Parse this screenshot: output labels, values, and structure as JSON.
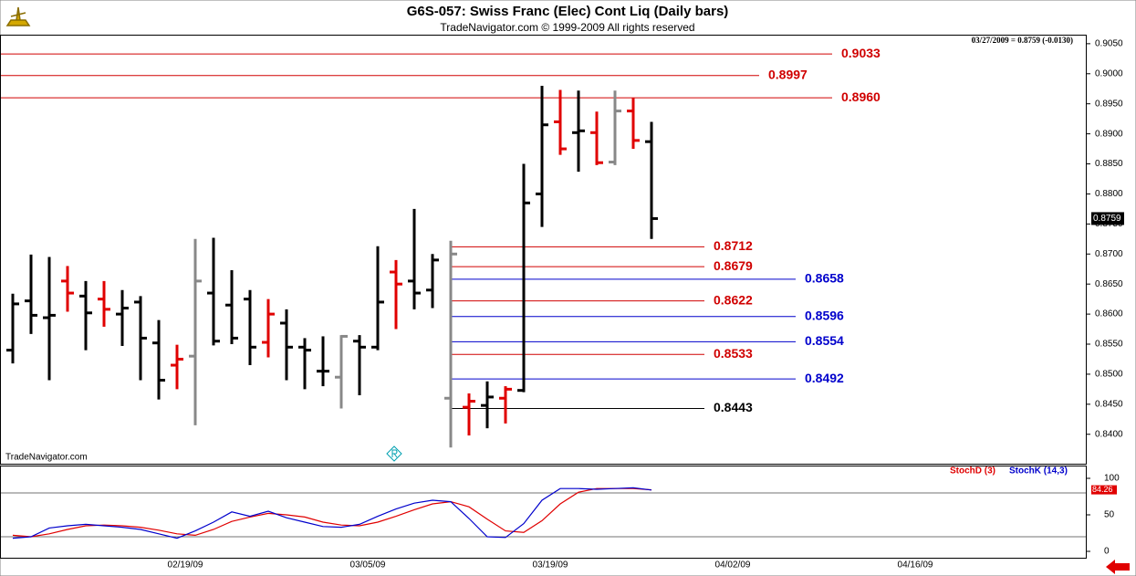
{
  "chart_data": [
    {
      "type": "ohlc",
      "title": "G6S-057:  Swiss Franc (Elec) Cont Liq  (Daily bars)",
      "subtitle": "TradeNavigator.com © 1999-2009 All rights reserved",
      "annotation": "03/27/2009 = 0.8759 (-0.0130)",
      "watermark": "TradeNavigator.com",
      "last_value_label": "0.8759",
      "categories": [
        null,
        null,
        null,
        null,
        null,
        null,
        null,
        null,
        null,
        "02/19/09",
        null,
        null,
        null,
        null,
        null,
        null,
        null,
        null,
        null,
        "03/05/09",
        null,
        null,
        null,
        null,
        null,
        null,
        null,
        null,
        null,
        "03/19/09",
        null,
        null,
        null,
        null,
        null,
        null,
        null,
        null,
        null,
        "04/02/09",
        null,
        null,
        null,
        null,
        null,
        null,
        null,
        null,
        null,
        "04/16/09",
        null,
        null,
        null,
        null,
        null,
        null,
        null,
        null,
        null
      ],
      "open": [
        0.854,
        0.8622,
        0.8594,
        0.8655,
        0.863,
        0.8625,
        0.86,
        0.862,
        0.8552,
        0.8515,
        0.853,
        0.8635,
        0.8615,
        0.8625,
        0.8553,
        0.8585,
        0.8545,
        0.8505,
        0.8495,
        0.8555,
        0.8545,
        0.867,
        0.8655,
        0.864,
        0.846,
        0.8445,
        0.8448,
        0.846,
        0.8473,
        0.88,
        0.892,
        0.8902,
        0.8902,
        0.8853,
        0.8938,
        0.8887,
        null,
        null,
        null,
        null,
        null,
        null,
        null,
        null,
        null,
        null,
        null,
        null,
        null,
        null,
        null,
        null,
        null,
        null,
        null,
        null,
        null,
        null,
        null
      ],
      "high": [
        0.8634,
        0.8699,
        0.8695,
        0.868,
        0.8655,
        0.8655,
        0.864,
        0.863,
        0.859,
        0.8549,
        0.8725,
        0.8727,
        0.8673,
        0.864,
        0.8625,
        0.8608,
        0.856,
        0.8563,
        0.8565,
        0.8565,
        0.8713,
        0.869,
        0.8775,
        0.87,
        0.8722,
        0.8468,
        0.8488,
        0.848,
        0.885,
        0.898,
        0.8973,
        0.8972,
        0.8937,
        0.8972,
        0.896,
        0.892,
        null,
        null,
        null,
        null,
        null,
        null,
        null,
        null,
        null,
        null,
        null,
        null,
        null,
        null,
        null,
        null,
        null,
        null,
        null,
        null,
        null,
        null,
        null
      ],
      "low": [
        0.8518,
        0.8567,
        0.849,
        0.8604,
        0.854,
        0.8579,
        0.8547,
        0.849,
        0.8458,
        0.8475,
        0.8415,
        0.8548,
        0.855,
        0.8515,
        0.8528,
        0.849,
        0.8475,
        0.848,
        0.8443,
        0.8465,
        0.854,
        0.8575,
        0.8608,
        0.861,
        0.8378,
        0.8398,
        0.841,
        0.8418,
        0.847,
        0.8745,
        0.8865,
        0.8837,
        0.8848,
        0.8848,
        0.8875,
        0.8725,
        null,
        null,
        null,
        null,
        null,
        null,
        null,
        null,
        null,
        null,
        null,
        null,
        null,
        null,
        null,
        null,
        null,
        null,
        null,
        null,
        null,
        null,
        null
      ],
      "close": [
        0.8617,
        0.8598,
        0.8598,
        0.8635,
        0.8602,
        0.8608,
        0.861,
        0.856,
        0.849,
        0.8525,
        0.8655,
        0.8555,
        0.856,
        0.8545,
        0.86,
        0.8545,
        0.854,
        0.8505,
        0.8563,
        0.8545,
        0.862,
        0.865,
        0.8635,
        0.869,
        0.87,
        0.8455,
        0.8462,
        0.8475,
        0.8785,
        0.8915,
        0.8875,
        0.8905,
        0.8852,
        0.8938,
        0.8889,
        0.8759,
        null,
        null,
        null,
        null,
        null,
        null,
        null,
        null,
        null,
        null,
        null,
        null,
        null,
        null,
        null,
        null,
        null,
        null,
        null,
        null,
        null,
        null,
        null
      ],
      "colors": [
        "#000000",
        "#000000",
        "#000000",
        "#e00000",
        "#000000",
        "#e00000",
        "#000000",
        "#000000",
        "#000000",
        "#e00000",
        "#888888",
        "#000000",
        "#000000",
        "#000000",
        "#e00000",
        "#000000",
        "#000000",
        "#000000",
        "#888888",
        "#000000",
        "#000000",
        "#e00000",
        "#000000",
        "#000000",
        "#888888",
        "#e00000",
        "#000000",
        "#e00000",
        "#000000",
        "#000000",
        "#e00000",
        "#000000",
        "#e00000",
        "#888888",
        "#e00000",
        "#000000",
        null,
        null,
        null,
        null,
        null,
        null,
        null,
        null,
        null,
        null,
        null,
        null,
        null,
        null,
        null,
        null,
        null,
        null,
        null,
        null,
        null,
        null,
        null
      ],
      "levels": [
        {
          "value": 0.9033,
          "label": "0.9033",
          "color": "#d00000"
        },
        {
          "value": 0.8997,
          "label": "0.8997",
          "color": "#d00000"
        },
        {
          "value": 0.896,
          "label": "0.8960",
          "color": "#d00000"
        },
        {
          "value": 0.8712,
          "label": "0.8712",
          "color": "#d00000"
        },
        {
          "value": 0.8679,
          "label": "0.8679",
          "color": "#d00000"
        },
        {
          "value": 0.8658,
          "label": "0.8658",
          "color": "#0000cc"
        },
        {
          "value": 0.8622,
          "label": "0.8622",
          "color": "#d00000"
        },
        {
          "value": 0.8596,
          "label": "0.8596",
          "color": "#0000cc"
        },
        {
          "value": 0.8554,
          "label": "0.8554",
          "color": "#0000cc"
        },
        {
          "value": 0.8533,
          "label": "0.8533",
          "color": "#d00000"
        },
        {
          "value": 0.8492,
          "label": "0.8492",
          "color": "#0000cc"
        },
        {
          "value": 0.8443,
          "label": "0.8443",
          "color": "#000000"
        }
      ],
      "ylim": [
        0.8351,
        0.9065
      ],
      "yticks": [
        {
          "value": 0.84,
          "label": "0.8400"
        },
        {
          "value": 0.845,
          "label": "0.8450"
        },
        {
          "value": 0.85,
          "label": "0.8500"
        },
        {
          "value": 0.855,
          "label": "0.8550"
        },
        {
          "value": 0.86,
          "label": "0.8600"
        },
        {
          "value": 0.865,
          "label": "0.8650"
        },
        {
          "value": 0.87,
          "label": "0.8700"
        },
        {
          "value": 0.875,
          "label": "0.8750"
        },
        {
          "value": 0.88,
          "label": "0.8800"
        },
        {
          "value": 0.885,
          "label": "0.8850"
        },
        {
          "value": 0.89,
          "label": "0.8900"
        },
        {
          "value": 0.895,
          "label": "0.8950"
        },
        {
          "value": 0.9,
          "label": "0.9000"
        },
        {
          "value": 0.905,
          "label": "0.9050"
        }
      ]
    },
    {
      "type": "line",
      "series": [
        {
          "name": "StochD (3)",
          "color": "#e00000",
          "last_value_label": "84.26",
          "values": [
            22,
            20,
            24,
            30,
            35,
            36,
            35,
            33,
            29,
            24,
            22,
            30,
            41,
            47,
            52,
            50,
            47,
            40,
            36,
            35,
            40,
            48,
            57,
            65,
            68,
            61,
            44,
            28,
            26,
            42,
            65,
            81,
            86,
            86,
            86,
            84.26
          ]
        },
        {
          "name": "StochK (14,3)",
          "color": "#0000cc",
          "values": [
            18,
            20,
            32,
            35,
            37,
            35,
            33,
            30,
            24,
            18,
            28,
            40,
            54,
            48,
            55,
            46,
            40,
            34,
            33,
            37,
            48,
            58,
            66,
            70,
            68,
            45,
            20,
            19,
            38,
            70,
            86,
            86,
            85,
            86,
            87,
            84
          ]
        }
      ],
      "hlines": [
        80,
        20
      ],
      "ylim": [
        -10,
        117.5
      ],
      "yticks": [
        0,
        50,
        100
      ]
    }
  ]
}
